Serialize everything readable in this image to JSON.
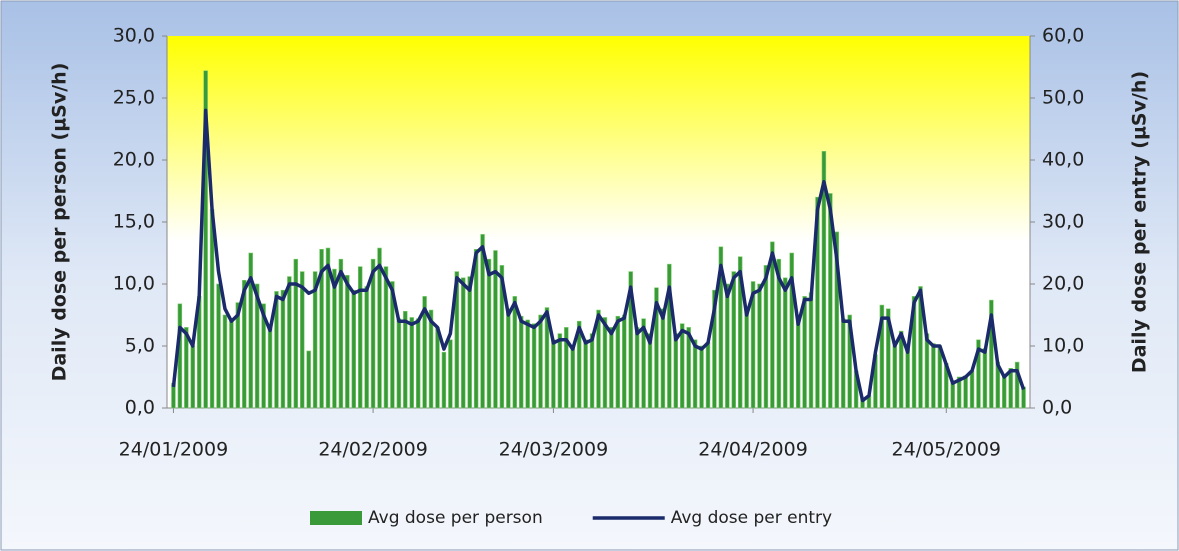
{
  "chart_data": {
    "type": "bar_line",
    "y_label": "Daily dose per person (µSv/h)",
    "y2_label": "Daily dose per entry (µSv/h)",
    "x": [
      "24/01/2009",
      "25/01/2009",
      "26/01/2009",
      "27/01/2009",
      "28/01/2009",
      "29/01/2009",
      "30/01/2009",
      "31/01/2009",
      "01/02/2009",
      "02/02/2009",
      "03/02/2009",
      "04/02/2009",
      "05/02/2009",
      "06/02/2009",
      "07/02/2009",
      "08/02/2009",
      "09/02/2009",
      "10/02/2009",
      "11/02/2009",
      "12/02/2009",
      "13/02/2009",
      "14/02/2009",
      "15/02/2009",
      "16/02/2009",
      "17/02/2009",
      "18/02/2009",
      "19/02/2009",
      "20/02/2009",
      "21/02/2009",
      "22/02/2009",
      "23/02/2009",
      "24/02/2009",
      "25/02/2009",
      "26/02/2009",
      "27/02/2009",
      "28/02/2009",
      "01/03/2009",
      "02/03/2009",
      "03/03/2009",
      "04/03/2009",
      "05/03/2009",
      "06/03/2009",
      "07/03/2009",
      "08/03/2009",
      "09/03/2009",
      "10/03/2009",
      "11/03/2009",
      "12/03/2009",
      "13/03/2009",
      "14/03/2009",
      "15/03/2009",
      "16/03/2009",
      "17/03/2009",
      "18/03/2009",
      "19/03/2009",
      "20/03/2009",
      "21/03/2009",
      "22/03/2009",
      "23/03/2009",
      "24/03/2009",
      "25/03/2009",
      "26/03/2009",
      "27/03/2009",
      "28/03/2009",
      "29/03/2009",
      "30/03/2009",
      "31/03/2009",
      "01/04/2009",
      "02/04/2009",
      "03/04/2009",
      "04/04/2009",
      "05/04/2009",
      "06/04/2009",
      "07/04/2009",
      "08/04/2009",
      "09/04/2009",
      "10/04/2009",
      "11/04/2009",
      "12/04/2009",
      "13/04/2009",
      "14/04/2009",
      "15/04/2009",
      "16/04/2009",
      "17/04/2009",
      "18/04/2009",
      "19/04/2009",
      "20/04/2009",
      "21/04/2009",
      "22/04/2009",
      "23/04/2009",
      "24/04/2009",
      "25/04/2009",
      "26/04/2009",
      "27/04/2009",
      "28/04/2009",
      "29/04/2009",
      "30/04/2009",
      "01/05/2009",
      "02/05/2009",
      "03/05/2009",
      "04/05/2009",
      "05/05/2009",
      "06/05/2009",
      "07/05/2009",
      "08/05/2009",
      "09/05/2009",
      "10/05/2009",
      "11/05/2009",
      "12/05/2009",
      "13/05/2009",
      "14/05/2009",
      "15/05/2009",
      "16/05/2009",
      "17/05/2009",
      "18/05/2009",
      "19/05/2009",
      "20/05/2009",
      "21/05/2009",
      "22/05/2009",
      "23/05/2009",
      "24/05/2009",
      "25/05/2009",
      "26/05/2009",
      "27/05/2009",
      "28/05/2009",
      "29/05/2009",
      "30/05/2009",
      "31/05/2009",
      "01/06/2009",
      "02/06/2009",
      "03/06/2009",
      "04/06/2009",
      "05/06/2009"
    ],
    "series": [
      {
        "name": "Avg dose per person",
        "type": "bar",
        "color": "#3a9a3a",
        "values": [
          2,
          8.4,
          6.5,
          5,
          9,
          27.2,
          16,
          10,
          7.5,
          7,
          8.5,
          10.3,
          12.5,
          10,
          8.4,
          6.5,
          9.4,
          9.5,
          10.6,
          12,
          11,
          4.6,
          11,
          12.8,
          12.9,
          11.2,
          12,
          10.7,
          9.5,
          11.4,
          9.8,
          12,
          12.9,
          11.4,
          10.2,
          7.2,
          7.8,
          7.3,
          7.2,
          9,
          7.9,
          6.5,
          4.5,
          5.5,
          11,
          10.5,
          10.6,
          12.8,
          14,
          12,
          12.7,
          11.5,
          8,
          9,
          7.4,
          7.1,
          6.8,
          7.5,
          8.1,
          5.5,
          6,
          6.5,
          5,
          7,
          5.5,
          6,
          7.9,
          7.3,
          6.5,
          7.4,
          7.5,
          11,
          6.5,
          7.2,
          6,
          9.7,
          8,
          11.6,
          6,
          6.8,
          6.5,
          5.5,
          5,
          5.3,
          9.5,
          13,
          10,
          11,
          12.2,
          8,
          10.2,
          10,
          11.5,
          13.4,
          12,
          10.5,
          12.5,
          7,
          9,
          9.3,
          17,
          20.7,
          17.3,
          14.2,
          7.2,
          7.5,
          3,
          0.7,
          1,
          4.3,
          8.3,
          8,
          5,
          6.2,
          4.8,
          9,
          9.8,
          6,
          5.2,
          5,
          3.6,
          2.2,
          2.5,
          2.6,
          3,
          5.5,
          4.8,
          8.7,
          3.7,
          2.7,
          3.2,
          3.7,
          1.7
        ]
      },
      {
        "name": "Avg dose per entry",
        "type": "line",
        "axis": "y2",
        "color": "#1b2a6b",
        "values": [
          3.4,
          13,
          12,
          10,
          18,
          48,
          32,
          22,
          16,
          14,
          15,
          19,
          21,
          18,
          15,
          12.5,
          18,
          17.5,
          20,
          20,
          19.5,
          18.5,
          19,
          22,
          23,
          19.5,
          22,
          20,
          18.5,
          19,
          19,
          22,
          23,
          21,
          19,
          14,
          14,
          13.5,
          14,
          16,
          14,
          13,
          9.5,
          12,
          21,
          20,
          19,
          25,
          26,
          21.5,
          22,
          21,
          15,
          17,
          14,
          13.5,
          13,
          14,
          15.5,
          10.5,
          11,
          11,
          9.5,
          13,
          10.5,
          11,
          15,
          13.5,
          12,
          14,
          14.5,
          19.5,
          12,
          13,
          10.5,
          17,
          14.5,
          19.5,
          11,
          12.5,
          12,
          10,
          9.5,
          10.5,
          16,
          23,
          18,
          21,
          22,
          15,
          18.5,
          19,
          21,
          25,
          21,
          19,
          21,
          13.5,
          17.5,
          17.5,
          32,
          36.5,
          32,
          24,
          14,
          14,
          6,
          1.2,
          2,
          9,
          14.5,
          14.5,
          10,
          12,
          9,
          17,
          19,
          11,
          10,
          10,
          7,
          4,
          4.5,
          5,
          6,
          9.5,
          9,
          15,
          7,
          5,
          6,
          6,
          3
        ]
      }
    ],
    "xlim": [
      "23/01/2009",
      "06/06/2009"
    ],
    "xticks": [
      "24/01/2009",
      "24/02/2009",
      "24/03/2009",
      "24/04/2009",
      "24/05/2009"
    ],
    "ylim": [
      0,
      30
    ],
    "yticks": [
      {
        "value": 0,
        "label": "0,0"
      },
      {
        "value": 5,
        "label": "5,0"
      },
      {
        "value": 10,
        "label": "10,0"
      },
      {
        "value": 15,
        "label": "15,0"
      },
      {
        "value": 20,
        "label": "20,0"
      },
      {
        "value": 25,
        "label": "25,0"
      },
      {
        "value": 30,
        "label": "30,0"
      }
    ],
    "y2lim": [
      0,
      60
    ],
    "y2ticks": [
      {
        "value": 0,
        "label": "0,0"
      },
      {
        "value": 10,
        "label": "10,0"
      },
      {
        "value": 20,
        "label": "20,0"
      },
      {
        "value": 30,
        "label": "30,0"
      },
      {
        "value": 40,
        "label": "40,0"
      },
      {
        "value": 50,
        "label": "50,0"
      },
      {
        "value": 60,
        "label": "60,0"
      }
    ],
    "legend": "bottom"
  }
}
